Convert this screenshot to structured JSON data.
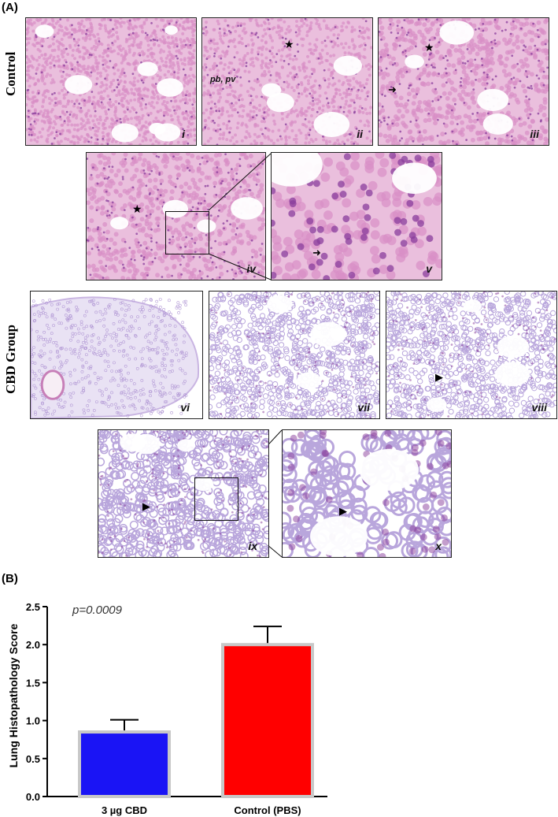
{
  "figure": {
    "panel_a_label": "(A)",
    "panel_b_label": "(B)",
    "row_labels": {
      "control": "Control",
      "cbd": "CBD Group"
    },
    "micrographs": [
      {
        "id": "i",
        "label": "i"
      },
      {
        "id": "ii",
        "label": "ii"
      },
      {
        "id": "iii",
        "label": "iii"
      },
      {
        "id": "iv",
        "label": "iv"
      },
      {
        "id": "v",
        "label": "v"
      },
      {
        "id": "vi",
        "label": "vi"
      },
      {
        "id": "vii",
        "label": "vii"
      },
      {
        "id": "viii",
        "label": "viii"
      },
      {
        "id": "ix",
        "label": "ix"
      },
      {
        "id": "x",
        "label": "x"
      }
    ],
    "annotations": {
      "pb_pv": "pb, pv"
    },
    "colors": {
      "stain_background": "#f3d9ea",
      "stain_tissue": "#d98fc6",
      "nuclei": "#8a3d9c",
      "cbd_background": "#eee8f6",
      "cbd_tissue": "#b9a6dc"
    }
  },
  "chart_data": {
    "type": "bar",
    "categories": [
      "3 µg CBD",
      "Control (PBS)"
    ],
    "values": [
      0.85,
      2.0
    ],
    "errors": [
      0.16,
      0.24
    ],
    "colors": [
      "#1a14f5",
      "#ff0000"
    ],
    "title": "",
    "xlabel": "",
    "ylabel": "Lung Histopathology Score",
    "ylim": [
      0,
      2.5
    ],
    "yticks": [
      "0.0",
      "0.5",
      "1.0",
      "1.5",
      "2.0",
      "2.5"
    ],
    "annotation": "p=0.0009",
    "grid": false
  }
}
